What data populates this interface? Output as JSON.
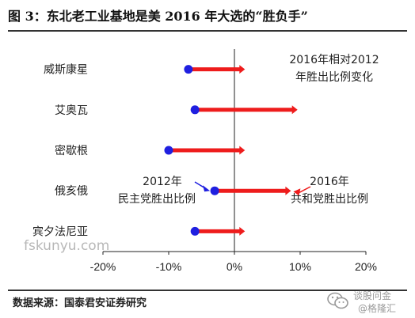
{
  "title": "图 3：东北老工业基地是美 2016 年大选的“胜负手”",
  "source": "数据来源：国泰君安证券研究",
  "watermark": "fskunyu.com",
  "wechat": {
    "line1": "谈股问金",
    "line2": "@格隆汇"
  },
  "chart_data": {
    "type": "dumbbell",
    "categories": [
      "威斯康星",
      "艾奥瓦",
      "密歇根",
      "俄亥俄",
      "宾夕法尼亚"
    ],
    "series": [
      {
        "name": "2012年民主党胜出比例",
        "values": [
          -7,
          -6,
          -10,
          -3,
          -6
        ]
      },
      {
        "name": "2016年共和党胜出比例",
        "values": [
          1,
          9,
          1,
          8,
          1
        ]
      }
    ],
    "xlim": [
      -20,
      20
    ],
    "xticks": [
      -20,
      -10,
      0,
      10,
      20
    ],
    "xtick_labels": [
      "-20%",
      "-10%",
      "0%",
      "10%",
      "20%"
    ],
    "legend_title": [
      "2016年相对2012",
      "年胜出比例变化"
    ],
    "annotations": [
      {
        "lines": [
          "2012年",
          "民主党胜出比例"
        ],
        "target": "dot"
      },
      {
        "lines": [
          "2016年",
          "共和党胜出比例"
        ],
        "target": "arrow"
      }
    ],
    "colors": {
      "start": "#1f1fe0",
      "change": "#ee1c1c",
      "axis": "#222222"
    },
    "grid": false
  }
}
